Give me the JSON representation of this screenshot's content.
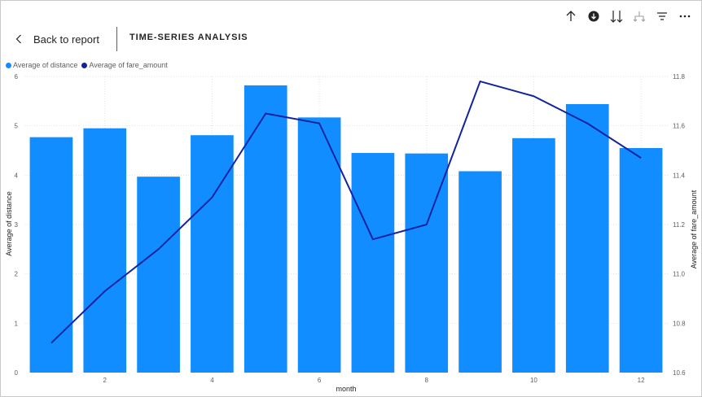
{
  "toolbar": {
    "icons": [
      "arrow-up-icon",
      "drill-down-icon",
      "expand-down-icon",
      "expand-hierarchy-icon",
      "filter-icon",
      "more-options-icon"
    ]
  },
  "header": {
    "back_label": "Back to report",
    "title": "TIME-SERIES ANALYSIS"
  },
  "colors": {
    "bar": "#118dff",
    "line": "#12239e",
    "grid": "#e1e1e1"
  },
  "chart_data": {
    "type": "bar+line",
    "title": "",
    "xlabel": "month",
    "ylabel_left": "Average of distance",
    "ylabel_right": "Average of fare_amount",
    "legend": [
      "Average of distance",
      "Average of fare_amount"
    ],
    "legend_position": "top-left",
    "grid": true,
    "x": [
      1,
      2,
      3,
      4,
      5,
      6,
      7,
      8,
      9,
      10,
      11,
      12
    ],
    "x_ticks": [
      "2",
      "4",
      "6",
      "8",
      "10",
      "12"
    ],
    "y_left_ticks": [
      "0",
      "1",
      "2",
      "3",
      "4",
      "5",
      "6"
    ],
    "y_right_ticks": [
      "10.6",
      "10.8",
      "11.0",
      "11.2",
      "11.4",
      "11.6",
      "11.8"
    ],
    "ylim_left": [
      0,
      6
    ],
    "ylim_right": [
      10.6,
      11.8
    ],
    "series": [
      {
        "name": "Average of distance",
        "kind": "bar",
        "axis": "left",
        "values": [
          4.77,
          4.95,
          3.97,
          4.81,
          5.82,
          5.17,
          4.45,
          4.44,
          4.08,
          4.75,
          5.44,
          4.55
        ]
      },
      {
        "name": "Average of fare_amount",
        "kind": "line",
        "axis": "right",
        "values": [
          10.72,
          10.93,
          11.1,
          11.31,
          11.65,
          11.61,
          11.14,
          11.2,
          11.78,
          11.72,
          11.61,
          11.47
        ]
      }
    ]
  }
}
